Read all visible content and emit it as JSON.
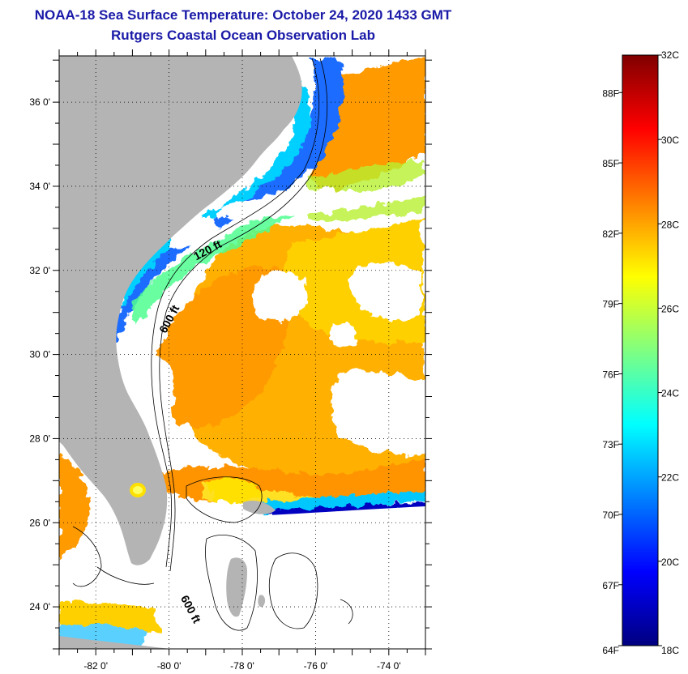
{
  "header": {
    "title": "NOAA-18 Sea Surface Temperature:  October 24, 2020 1433 GMT",
    "subtitle": "Rutgers Coastal Ocean Observation Lab"
  },
  "map": {
    "lon_range": [
      -83.0,
      -73.0
    ],
    "lat_range": [
      23.0,
      37.1
    ],
    "lon_ticks": [
      {
        "value": -82,
        "label": "-82 0'"
      },
      {
        "value": -80,
        "label": "-80 0'"
      },
      {
        "value": -78,
        "label": "-78 0'"
      },
      {
        "value": -76,
        "label": "-76 0'"
      },
      {
        "value": -74,
        "label": "-74 0'"
      }
    ],
    "lat_ticks": [
      {
        "value": 36,
        "label": "36 0'"
      },
      {
        "value": 34,
        "label": "34 0'"
      },
      {
        "value": 32,
        "label": "32 0'"
      },
      {
        "value": 30,
        "label": "30 0'"
      },
      {
        "value": 28,
        "label": "28 0'"
      },
      {
        "value": 26,
        "label": "26 0'"
      },
      {
        "value": 24,
        "label": "24 0'"
      }
    ],
    "grid": "dotted",
    "land_color": "#b4b4b4",
    "cloud_color": "#ffffff",
    "isobath_labels": [
      {
        "text": "120 ft",
        "lon": -78.9,
        "lat": 32.4,
        "angle": -28
      },
      {
        "text": "600 ft",
        "lon": -79.9,
        "lat": 30.8,
        "angle": -62
      },
      {
        "text": "600 ft",
        "lon": -79.5,
        "lat": 23.9,
        "angle": 62
      }
    ]
  },
  "colorbar": {
    "min_c": 18,
    "max_c": 32,
    "celsius_labels": [
      "32C",
      "30C",
      "28C",
      "26C",
      "24C",
      "22C",
      "20C",
      "18C"
    ],
    "fahrenheit_labels": [
      "88F",
      "85F",
      "82F",
      "79F",
      "76F",
      "73F",
      "70F",
      "67F",
      "64F"
    ],
    "stops": [
      "#000080",
      "#0000ff",
      "#0080ff",
      "#00ffff",
      "#80ff80",
      "#ffff00",
      "#ff8000",
      "#ff0000",
      "#800000"
    ]
  }
}
